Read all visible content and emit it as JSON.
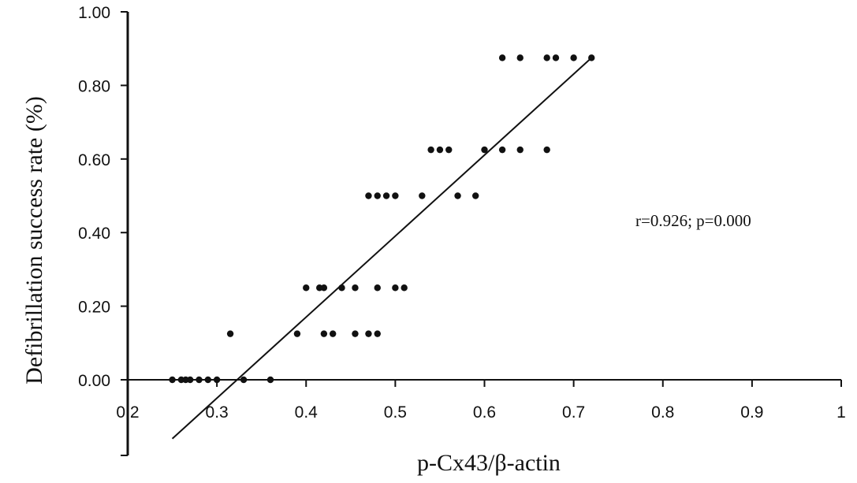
{
  "chart_data": {
    "type": "scatter",
    "xlabel": "p-Cx43/β-actin",
    "ylabel": "Defibrillation success rate (%)",
    "xlim": [
      0.2,
      1.0
    ],
    "ylim": [
      -0.2,
      1.0
    ],
    "x_ticks": [
      0.2,
      0.3,
      0.4,
      0.5,
      0.6,
      0.7,
      0.8,
      0.9,
      1.0
    ],
    "x_tick_labels": [
      "0.2",
      "0.3",
      "0.4",
      "0.5",
      "0.6",
      "0.7",
      "0.8",
      "0.9",
      "1"
    ],
    "y_ticks": [
      0.0,
      0.2,
      0.4,
      0.6,
      0.8,
      1.0
    ],
    "y_tick_labels": [
      "0.00",
      "0.20",
      "0.40",
      "0.60",
      "0.80",
      "1.00"
    ],
    "grid": false,
    "annotation": "r=0.926; p=0.000",
    "points": [
      [
        0.25,
        0.0
      ],
      [
        0.26,
        0.0
      ],
      [
        0.265,
        0.0
      ],
      [
        0.27,
        0.0
      ],
      [
        0.28,
        0.0
      ],
      [
        0.29,
        0.0
      ],
      [
        0.3,
        0.0
      ],
      [
        0.33,
        0.0
      ],
      [
        0.36,
        0.0
      ],
      [
        0.315,
        0.125
      ],
      [
        0.39,
        0.125
      ],
      [
        0.42,
        0.125
      ],
      [
        0.43,
        0.125
      ],
      [
        0.455,
        0.125
      ],
      [
        0.47,
        0.125
      ],
      [
        0.48,
        0.125
      ],
      [
        0.4,
        0.25
      ],
      [
        0.415,
        0.25
      ],
      [
        0.42,
        0.25
      ],
      [
        0.44,
        0.25
      ],
      [
        0.455,
        0.25
      ],
      [
        0.48,
        0.25
      ],
      [
        0.5,
        0.25
      ],
      [
        0.51,
        0.25
      ],
      [
        0.47,
        0.5
      ],
      [
        0.48,
        0.5
      ],
      [
        0.49,
        0.5
      ],
      [
        0.5,
        0.5
      ],
      [
        0.53,
        0.5
      ],
      [
        0.57,
        0.5
      ],
      [
        0.59,
        0.5
      ],
      [
        0.54,
        0.625
      ],
      [
        0.55,
        0.625
      ],
      [
        0.56,
        0.625
      ],
      [
        0.6,
        0.625
      ],
      [
        0.62,
        0.625
      ],
      [
        0.64,
        0.625
      ],
      [
        0.67,
        0.625
      ],
      [
        0.62,
        0.875
      ],
      [
        0.64,
        0.875
      ],
      [
        0.67,
        0.875
      ],
      [
        0.68,
        0.875
      ],
      [
        0.7,
        0.875
      ],
      [
        0.72,
        0.875
      ]
    ],
    "fit_line": {
      "x": [
        0.25,
        0.72
      ],
      "y": [
        -0.16,
        0.875
      ]
    }
  }
}
